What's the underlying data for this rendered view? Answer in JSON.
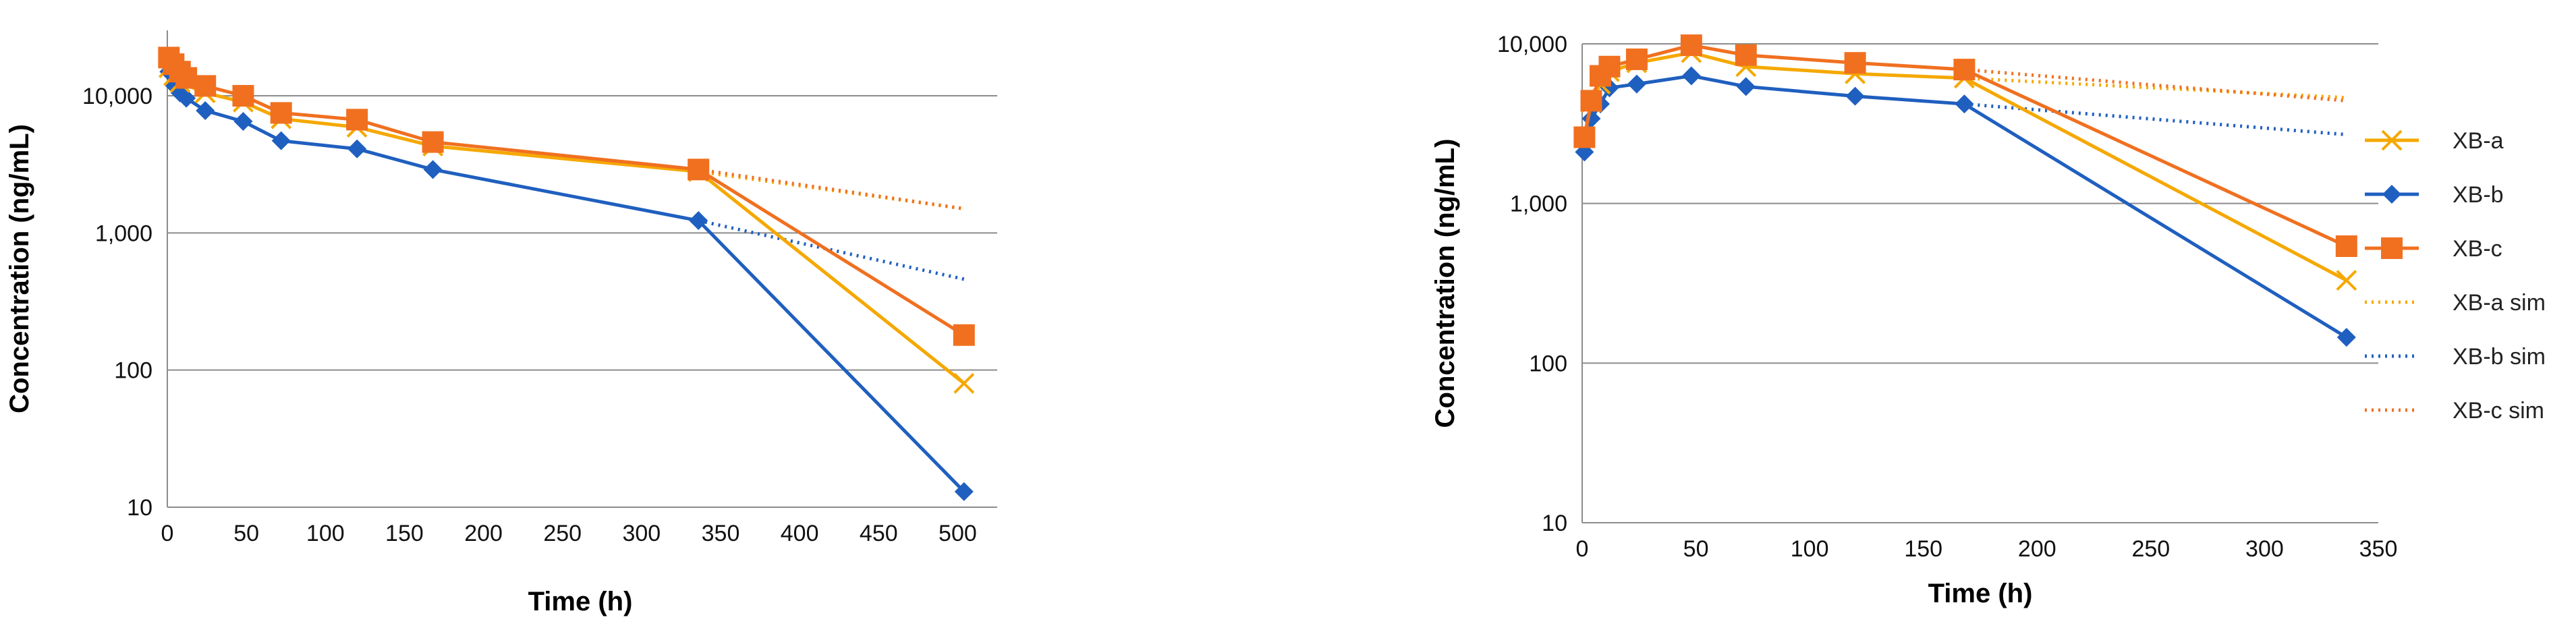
{
  "chart_data": [
    {
      "type": "line",
      "xlabel": "Time (h)",
      "ylabel": "Concentration (ng/mL)",
      "yscale": "log",
      "xlim": [
        0,
        525
      ],
      "ylim": [
        10,
        30000
      ],
      "grid": "horizontal",
      "xticks": [
        "0",
        "50",
        "100",
        "150",
        "200",
        "250",
        "300",
        "350",
        "400",
        "450",
        "500"
      ],
      "yticks": [
        "10",
        "100",
        "1,000",
        "10,000"
      ],
      "series": [
        {
          "name": "XB-a",
          "color": "#F5A800",
          "marker": "x",
          "x": [
            1,
            4,
            8,
            24,
            48,
            72,
            120,
            168,
            336,
            504
          ],
          "y": [
            16000,
            14000,
            12500,
            10500,
            9000,
            6800,
            5900,
            4300,
            2800,
            80
          ]
        },
        {
          "name": "XB-b",
          "color": "#1F5FBF",
          "marker": "diamond",
          "x": [
            1,
            4,
            8,
            12,
            24,
            48,
            72,
            120,
            168,
            336,
            504
          ],
          "y": [
            15000,
            12000,
            10500,
            9600,
            7800,
            6500,
            4700,
            4100,
            2900,
            1230,
            13
          ]
        },
        {
          "name": "XB-c",
          "color": "#F07020",
          "marker": "square",
          "x": [
            1,
            4,
            8,
            12,
            24,
            48,
            72,
            120,
            168,
            336,
            504
          ],
          "y": [
            19000,
            17000,
            15000,
            13500,
            11800,
            10000,
            7500,
            6700,
            4600,
            2900,
            180
          ]
        },
        {
          "name": "XB-a sim",
          "color": "#F5A800",
          "style": "dotted",
          "x": [
            336,
            504
          ],
          "y": [
            2800,
            1500
          ]
        },
        {
          "name": "XB-b sim",
          "color": "#1F5FBF",
          "style": "dotted",
          "x": [
            336,
            504
          ],
          "y": [
            1230,
            460
          ]
        },
        {
          "name": "XB-c sim",
          "color": "#F07020",
          "style": "dotted",
          "x": [
            336,
            504
          ],
          "y": [
            2900,
            1500
          ]
        }
      ]
    },
    {
      "type": "line",
      "xlabel": "Time (h)",
      "ylabel": "Concentration (ng/mL)",
      "yscale": "log",
      "xlim": [
        0,
        350
      ],
      "ylim": [
        10,
        10000
      ],
      "grid": "horizontal",
      "legend": "right",
      "xticks": [
        "0",
        "50",
        "100",
        "150",
        "200",
        "250",
        "300",
        "350"
      ],
      "yticks": [
        "10",
        "100",
        "1,000",
        "10,000"
      ],
      "series": [
        {
          "name": "XB-a",
          "color": "#F5A800",
          "marker": "x",
          "x": [
            1,
            4,
            8,
            12,
            24,
            48,
            72,
            120,
            168,
            336
          ],
          "y": [
            2600,
            4300,
            5600,
            6700,
            7600,
            8800,
            7200,
            6500,
            6100,
            330
          ]
        },
        {
          "name": "XB-b",
          "color": "#1F5FBF",
          "marker": "diamond",
          "x": [
            1,
            4,
            8,
            12,
            24,
            48,
            72,
            120,
            168,
            336
          ],
          "y": [
            2100,
            3400,
            4200,
            5300,
            5600,
            6300,
            5400,
            4700,
            4200,
            145
          ]
        },
        {
          "name": "XB-c",
          "color": "#F07020",
          "marker": "square",
          "x": [
            1,
            4,
            8,
            12,
            24,
            48,
            72,
            120,
            168,
            336
          ],
          "y": [
            2600,
            4400,
            6300,
            7200,
            8000,
            9800,
            8500,
            7600,
            6900,
            540
          ]
        },
        {
          "name": "XB-a sim",
          "color": "#F5A800",
          "style": "dotted",
          "x": [
            168,
            336
          ],
          "y": [
            6100,
            4600
          ]
        },
        {
          "name": "XB-b sim",
          "color": "#1F5FBF",
          "style": "dotted",
          "x": [
            168,
            336
          ],
          "y": [
            4200,
            2700
          ]
        },
        {
          "name": "XB-c sim",
          "color": "#F07020",
          "style": "dotted",
          "x": [
            168,
            336
          ],
          "y": [
            6900,
            4400
          ]
        }
      ]
    }
  ]
}
